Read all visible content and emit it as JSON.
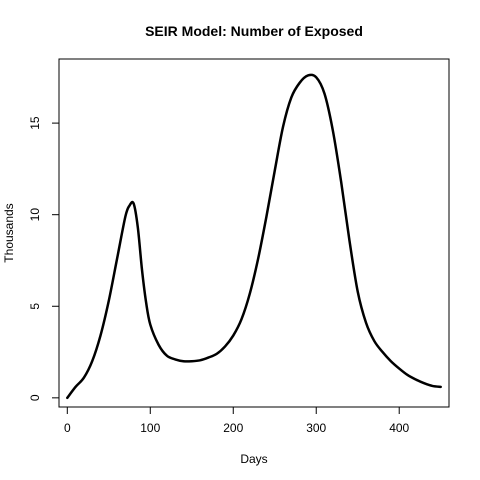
{
  "chart_data": {
    "type": "line",
    "title": "SEIR Model: Number of Exposed",
    "xlabel": "Days",
    "ylabel": "Thousands",
    "xlim": [
      -10,
      460
    ],
    "ylim": [
      -0.5,
      18.5
    ],
    "xticks": [
      0,
      100,
      200,
      300,
      400
    ],
    "yticks": [
      0,
      5,
      10,
      15
    ],
    "grid": false,
    "legend": "none",
    "line_color": "#000000",
    "series": [
      {
        "x": [
          0,
          10,
          20,
          30,
          40,
          50,
          60,
          70,
          75,
          80,
          85,
          90,
          95,
          100,
          110,
          120,
          130,
          140,
          150,
          160,
          170,
          180,
          190,
          200,
          210,
          220,
          230,
          240,
          250,
          260,
          270,
          280,
          290,
          300,
          310,
          320,
          330,
          340,
          350,
          360,
          370,
          380,
          390,
          400,
          410,
          420,
          430,
          440,
          450
        ],
        "y": [
          0.0,
          0.6,
          1.1,
          2.0,
          3.4,
          5.3,
          7.6,
          9.9,
          10.5,
          10.6,
          9.3,
          7.0,
          5.2,
          4.0,
          2.9,
          2.3,
          2.1,
          2.0,
          2.0,
          2.05,
          2.2,
          2.4,
          2.8,
          3.4,
          4.3,
          5.7,
          7.6,
          9.9,
          12.4,
          14.8,
          16.4,
          17.2,
          17.6,
          17.5,
          16.6,
          14.6,
          11.8,
          8.6,
          5.8,
          4.1,
          3.1,
          2.5,
          2.0,
          1.6,
          1.25,
          1.0,
          0.8,
          0.65,
          0.6
        ]
      }
    ]
  }
}
